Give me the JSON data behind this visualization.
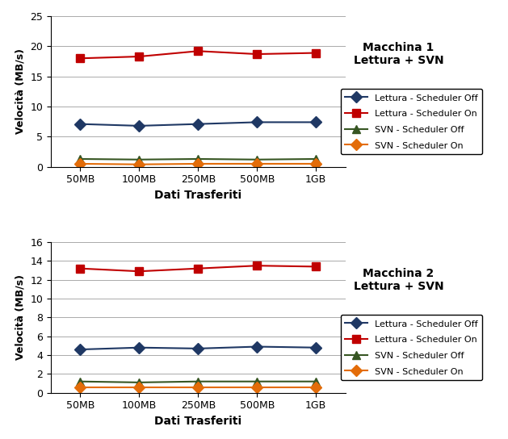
{
  "categories": [
    "50MB",
    "100MB",
    "250MB",
    "500MB",
    "1GB"
  ],
  "plot1": {
    "title": "Macchina 1\nLettura + SVN",
    "ylim": [
      0,
      25
    ],
    "yticks": [
      0,
      5,
      10,
      15,
      20,
      25
    ],
    "series": {
      "lettura_off": [
        7.1,
        6.8,
        7.1,
        7.4,
        7.4
      ],
      "lettura_on": [
        18.0,
        18.3,
        19.2,
        18.7,
        18.9
      ],
      "svn_off": [
        1.3,
        1.2,
        1.3,
        1.2,
        1.3
      ],
      "svn_on": [
        0.5,
        0.4,
        0.5,
        0.5,
        0.5
      ]
    }
  },
  "plot2": {
    "title": "Macchina 2\nLettura + SVN",
    "ylim": [
      0,
      16
    ],
    "yticks": [
      0,
      2,
      4,
      6,
      8,
      10,
      12,
      14,
      16
    ],
    "series": {
      "lettura_off": [
        4.6,
        4.8,
        4.7,
        4.9,
        4.8
      ],
      "lettura_on": [
        13.2,
        12.9,
        13.2,
        13.5,
        13.4
      ],
      "svn_off": [
        1.2,
        1.1,
        1.2,
        1.2,
        1.2
      ],
      "svn_on": [
        0.6,
        0.6,
        0.6,
        0.6,
        0.6
      ]
    }
  },
  "legend_labels": [
    "Lettura - Scheduler Off",
    "Lettura - Scheduler On",
    "SVN - Scheduler Off",
    "SVN - Scheduler On"
  ],
  "colors": {
    "lettura_off": "#1F3864",
    "lettura_on": "#C00000",
    "svn_off": "#375623",
    "svn_on": "#E36C09"
  },
  "markers": {
    "lettura_off": "D",
    "lettura_on": "s",
    "svn_off": "^",
    "svn_on": "D"
  },
  "xlabel": "Dati Trasferiti",
  "ylabel": "Velocità (MB/s)",
  "background_color": "#ffffff",
  "grid_color": "#aaaaaa"
}
